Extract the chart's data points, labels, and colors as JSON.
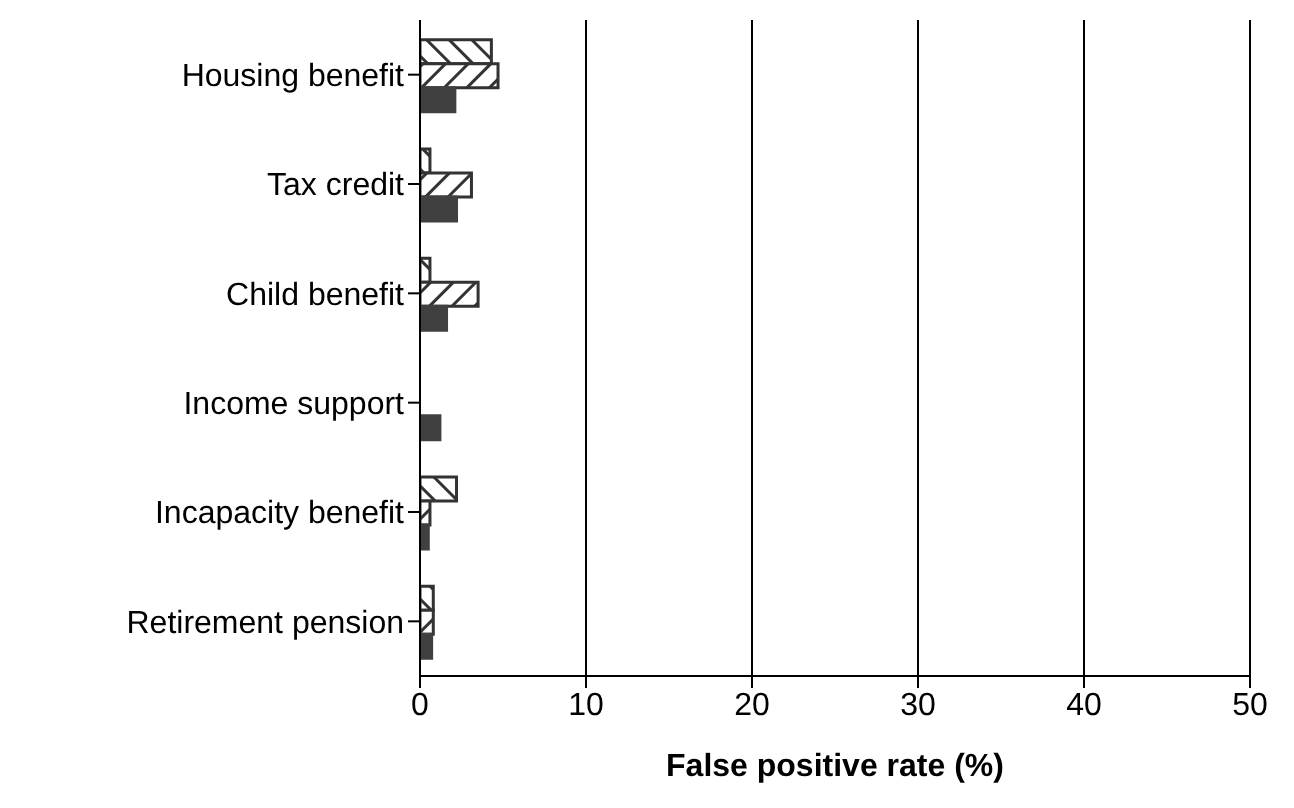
{
  "chart_data": {
    "type": "bar",
    "orientation": "horizontal",
    "xlabel": "False positive rate (%)",
    "categories": [
      "Housing benefit",
      "Tax credit",
      "Child benefit",
      "Income support",
      "Incapacity benefit",
      "Retirement pension"
    ],
    "series": [
      {
        "color": "#333333",
        "values": [
          4.3,
          0.6,
          0.6,
          0,
          2.2,
          0.8
        ]
      },
      {
        "color": "#333333",
        "values": [
          4.7,
          3.1,
          3.5,
          0,
          0.6,
          0.8
        ]
      },
      {
        "color": "#404040",
        "values": [
          2.1,
          2.2,
          1.6,
          1.2,
          0.5,
          0.7
        ]
      }
    ],
    "xlim": [
      0,
      50
    ],
    "xticks": [
      0,
      10,
      20,
      30,
      40,
      50
    ],
    "grid": "x",
    "legend": false
  }
}
